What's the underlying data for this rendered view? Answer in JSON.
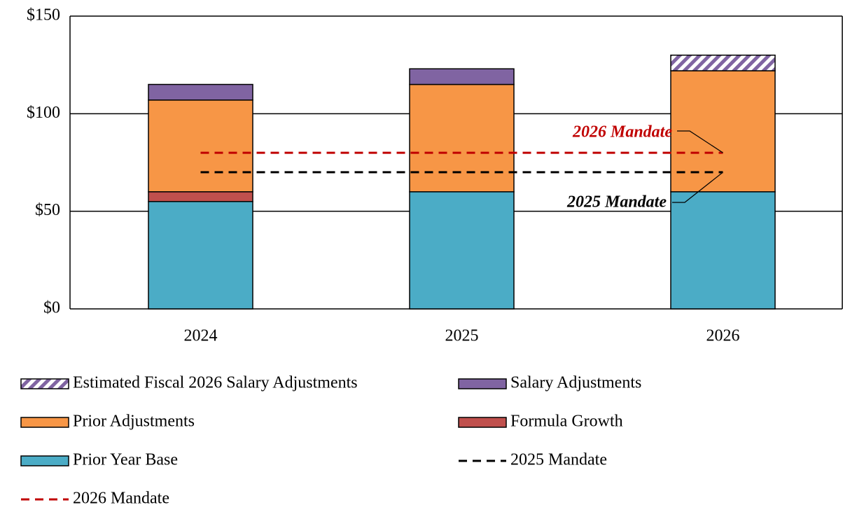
{
  "chart_data": {
    "type": "bar",
    "stacked": true,
    "categories": [
      "2024",
      "2025",
      "2026"
    ],
    "ylim": [
      0,
      150
    ],
    "yticks": [
      {
        "value": 0,
        "label": "$0"
      },
      {
        "value": 50,
        "label": "$50"
      },
      {
        "value": 100,
        "label": "$100"
      },
      {
        "value": 150,
        "label": "$150"
      }
    ],
    "grid": true,
    "series": [
      {
        "name": "Estimated Fiscal 2026 Salary Adjustments",
        "type": "bar",
        "color": "#8064a2",
        "hatch": true,
        "values": [
          null,
          null,
          8
        ]
      },
      {
        "name": "Salary Adjustments",
        "type": "bar",
        "color": "#8064a2",
        "values": [
          8,
          8,
          null
        ]
      },
      {
        "name": "Prior Adjustments",
        "type": "bar",
        "color": "#f79646",
        "values": [
          47,
          55,
          62
        ]
      },
      {
        "name": "Formula Growth",
        "type": "bar",
        "color": "#c0504d",
        "values": [
          5,
          null,
          null
        ]
      },
      {
        "name": "Prior Year Base",
        "type": "bar",
        "color": "#4bacc6",
        "values": [
          55,
          60,
          60
        ]
      },
      {
        "name": "2025 Mandate",
        "type": "line",
        "dashed": true,
        "color": "#000000",
        "values": [
          70,
          70,
          70
        ]
      },
      {
        "name": "2026 Mandate",
        "type": "line",
        "dashed": true,
        "color": "#c00000",
        "values": [
          80,
          80,
          80
        ]
      }
    ],
    "annotations": [
      {
        "text": "2026 Mandate",
        "color": "#c00000"
      },
      {
        "text": "2025 Mandate",
        "color": "#000000"
      }
    ]
  }
}
